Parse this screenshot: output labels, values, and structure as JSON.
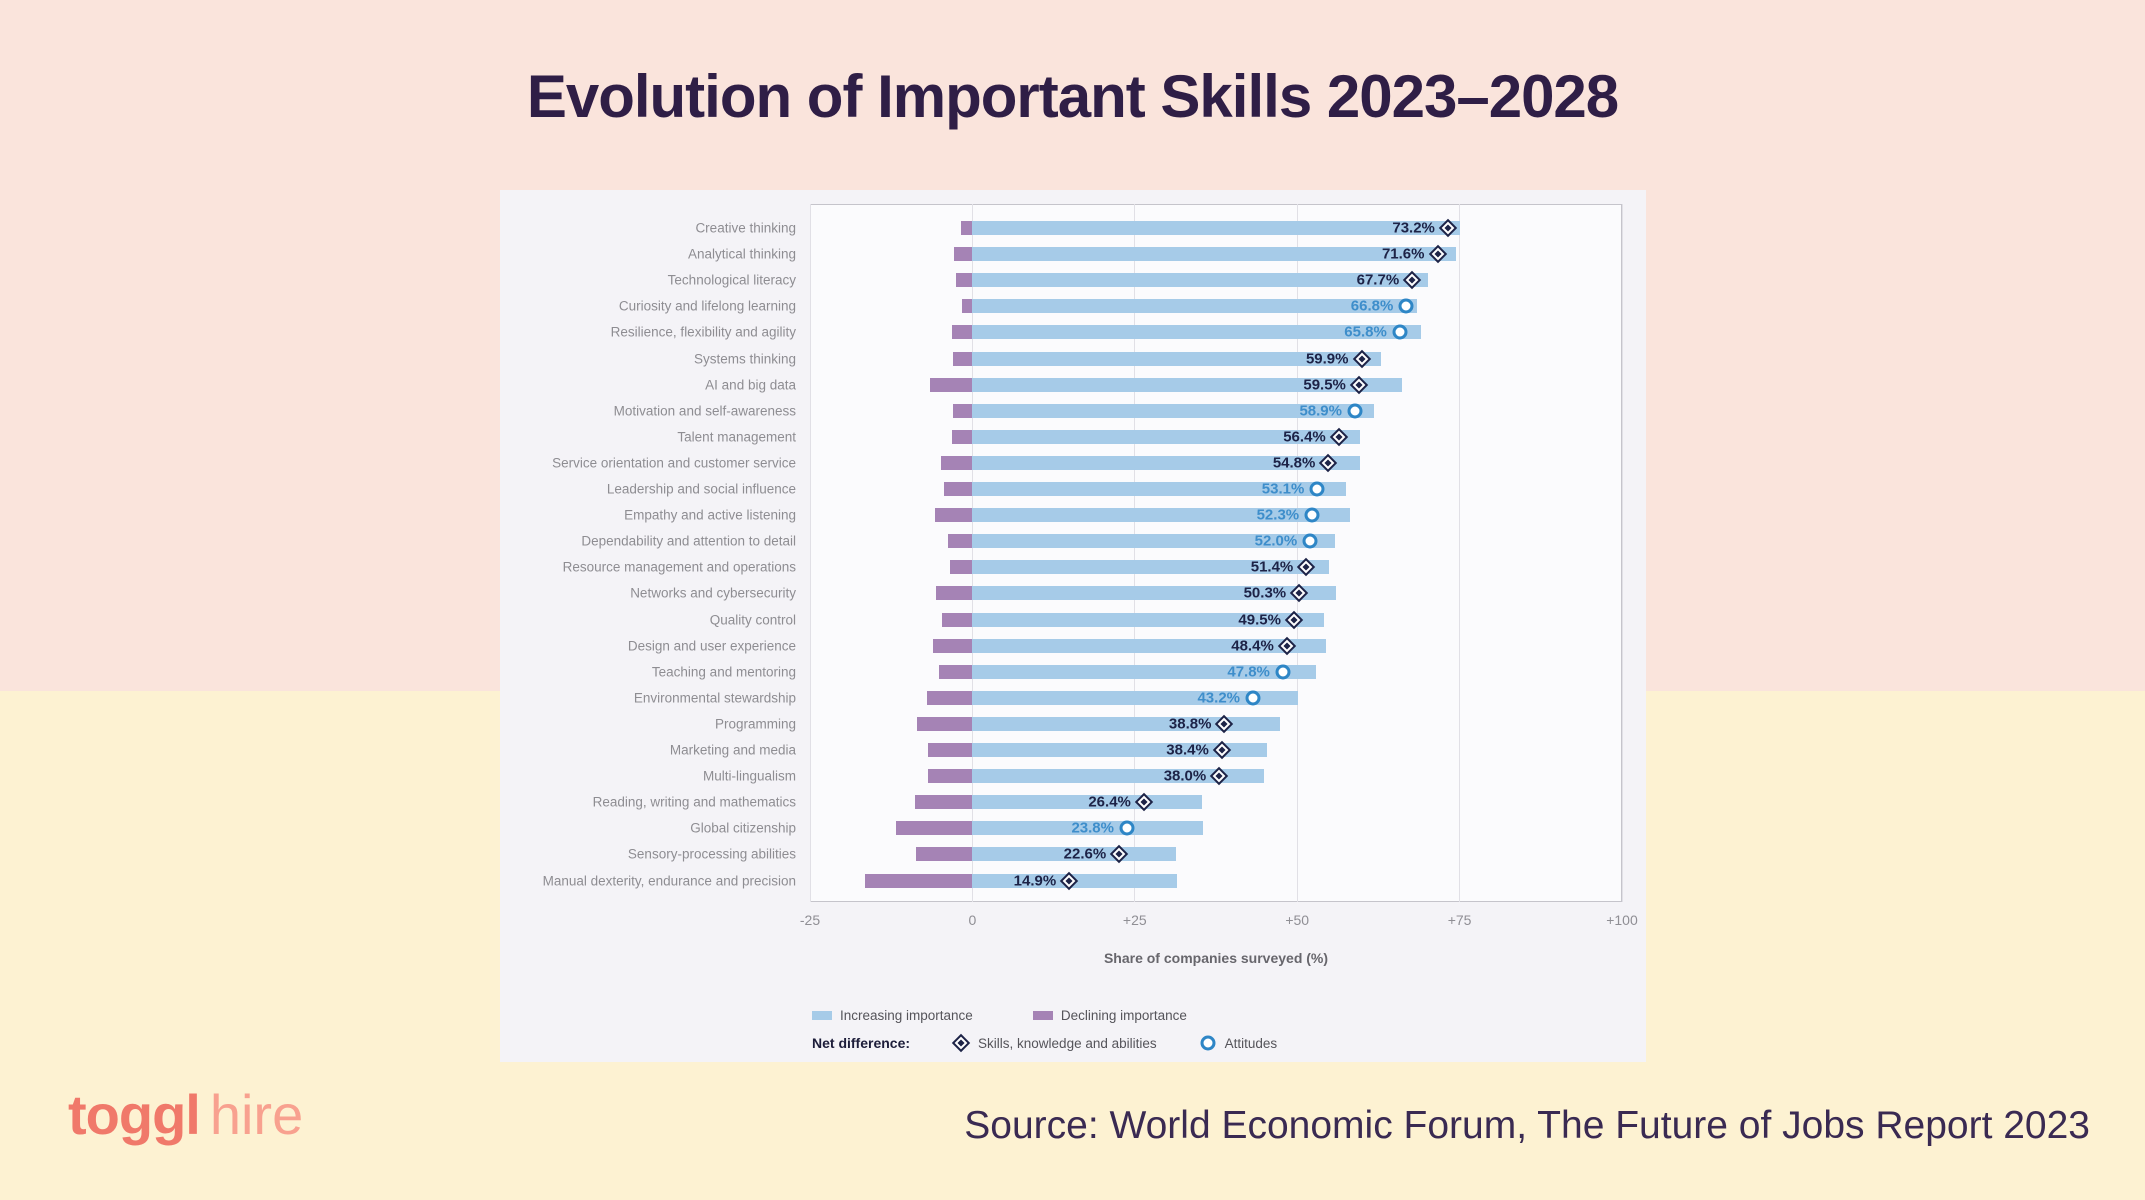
{
  "page": {
    "title": "Evolution of Important Skills 2023–2028",
    "source": "Source: World Economic Forum, The Future of Jobs Report 2023",
    "logo_bold": "toggl",
    "logo_light": "hire"
  },
  "colors": {
    "background_top": "#fae4dc",
    "background_bottom": "#fdf2d2",
    "panel": "#f4f3f7",
    "increasing_bar": "#a6cbe8",
    "declining_bar": "#a583b5",
    "skills_marker": "#1d2347",
    "attitudes_marker": "#2e86c6",
    "title_text": "#2f1e46",
    "logo_coral": "#f0796a"
  },
  "chart_data": {
    "type": "bar",
    "orientation": "horizontal-diverging",
    "xlabel": "Share of companies surveyed (%)",
    "xlim": [
      -25,
      100
    ],
    "grid": true,
    "x_ticks": [
      {
        "value": -25,
        "label": "-25"
      },
      {
        "value": 0,
        "label": "0"
      },
      {
        "value": 25,
        "label": "+25"
      },
      {
        "value": 50,
        "label": "+50"
      },
      {
        "value": 75,
        "label": "+75"
      },
      {
        "value": 100,
        "label": "+100"
      }
    ],
    "legend": {
      "increasing": "Increasing importance",
      "declining": "Declining importance",
      "net_difference_label": "Net difference:",
      "skills_label": "Skills, knowledge and abilities",
      "attitudes_label": "Attitudes"
    },
    "rows": [
      {
        "skill": "Creative thinking",
        "net_difference_pct": 73.2,
        "increasing_pct": 75.0,
        "declining_pct": 1.8,
        "category": "skills"
      },
      {
        "skill": "Analytical thinking",
        "net_difference_pct": 71.6,
        "increasing_pct": 74.5,
        "declining_pct": 2.9,
        "category": "skills"
      },
      {
        "skill": "Technological literacy",
        "net_difference_pct": 67.7,
        "increasing_pct": 70.2,
        "declining_pct": 2.5,
        "category": "skills"
      },
      {
        "skill": "Curiosity and lifelong learning",
        "net_difference_pct": 66.8,
        "increasing_pct": 68.4,
        "declining_pct": 1.6,
        "category": "attitudes"
      },
      {
        "skill": "Resilience, flexibility and agility",
        "net_difference_pct": 65.8,
        "increasing_pct": 69.0,
        "declining_pct": 3.2,
        "category": "attitudes"
      },
      {
        "skill": "Systems thinking",
        "net_difference_pct": 59.9,
        "increasing_pct": 62.9,
        "declining_pct": 3.0,
        "category": "skills"
      },
      {
        "skill": "AI and big data",
        "net_difference_pct": 59.5,
        "increasing_pct": 66.1,
        "declining_pct": 6.6,
        "category": "skills"
      },
      {
        "skill": "Motivation and self-awareness",
        "net_difference_pct": 58.9,
        "increasing_pct": 61.9,
        "declining_pct": 3.0,
        "category": "attitudes"
      },
      {
        "skill": "Talent management",
        "net_difference_pct": 56.4,
        "increasing_pct": 59.6,
        "declining_pct": 3.2,
        "category": "skills"
      },
      {
        "skill": "Service orientation and customer service",
        "net_difference_pct": 54.8,
        "increasing_pct": 59.6,
        "declining_pct": 4.8,
        "category": "skills"
      },
      {
        "skill": "Leadership and social influence",
        "net_difference_pct": 53.1,
        "increasing_pct": 57.5,
        "declining_pct": 4.4,
        "category": "attitudes"
      },
      {
        "skill": "Empathy and active listening",
        "net_difference_pct": 52.3,
        "increasing_pct": 58.1,
        "declining_pct": 5.8,
        "category": "attitudes"
      },
      {
        "skill": "Dependability and attention to detail",
        "net_difference_pct": 52.0,
        "increasing_pct": 55.8,
        "declining_pct": 3.8,
        "category": "attitudes"
      },
      {
        "skill": "Resource management and operations",
        "net_difference_pct": 51.4,
        "increasing_pct": 54.9,
        "declining_pct": 3.5,
        "category": "skills"
      },
      {
        "skill": "Networks and cybersecurity",
        "net_difference_pct": 50.3,
        "increasing_pct": 55.9,
        "declining_pct": 5.6,
        "category": "skills"
      },
      {
        "skill": "Quality control",
        "net_difference_pct": 49.5,
        "increasing_pct": 54.2,
        "declining_pct": 4.7,
        "category": "skills"
      },
      {
        "skill": "Design and user experience",
        "net_difference_pct": 48.4,
        "increasing_pct": 54.4,
        "declining_pct": 6.0,
        "category": "skills"
      },
      {
        "skill": "Teaching and mentoring",
        "net_difference_pct": 47.8,
        "increasing_pct": 52.9,
        "declining_pct": 5.1,
        "category": "attitudes"
      },
      {
        "skill": "Environmental stewardship",
        "net_difference_pct": 43.2,
        "increasing_pct": 50.2,
        "declining_pct": 7.0,
        "category": "attitudes"
      },
      {
        "skill": "Programming",
        "net_difference_pct": 38.8,
        "increasing_pct": 47.3,
        "declining_pct": 8.5,
        "category": "skills"
      },
      {
        "skill": "Marketing and media",
        "net_difference_pct": 38.4,
        "increasing_pct": 45.3,
        "declining_pct": 6.9,
        "category": "skills"
      },
      {
        "skill": "Multi-lingualism",
        "net_difference_pct": 38.0,
        "increasing_pct": 44.9,
        "declining_pct": 6.9,
        "category": "skills"
      },
      {
        "skill": "Reading, writing and mathematics",
        "net_difference_pct": 26.4,
        "increasing_pct": 35.3,
        "declining_pct": 8.9,
        "category": "skills"
      },
      {
        "skill": "Global citizenship",
        "net_difference_pct": 23.8,
        "increasing_pct": 35.5,
        "declining_pct": 11.7,
        "category": "attitudes"
      },
      {
        "skill": "Sensory-processing abilities",
        "net_difference_pct": 22.6,
        "increasing_pct": 31.3,
        "declining_pct": 8.7,
        "category": "skills"
      },
      {
        "skill": "Manual dexterity, endurance and precision",
        "net_difference_pct": 14.9,
        "increasing_pct": 31.5,
        "declining_pct": 16.6,
        "category": "skills"
      }
    ]
  }
}
